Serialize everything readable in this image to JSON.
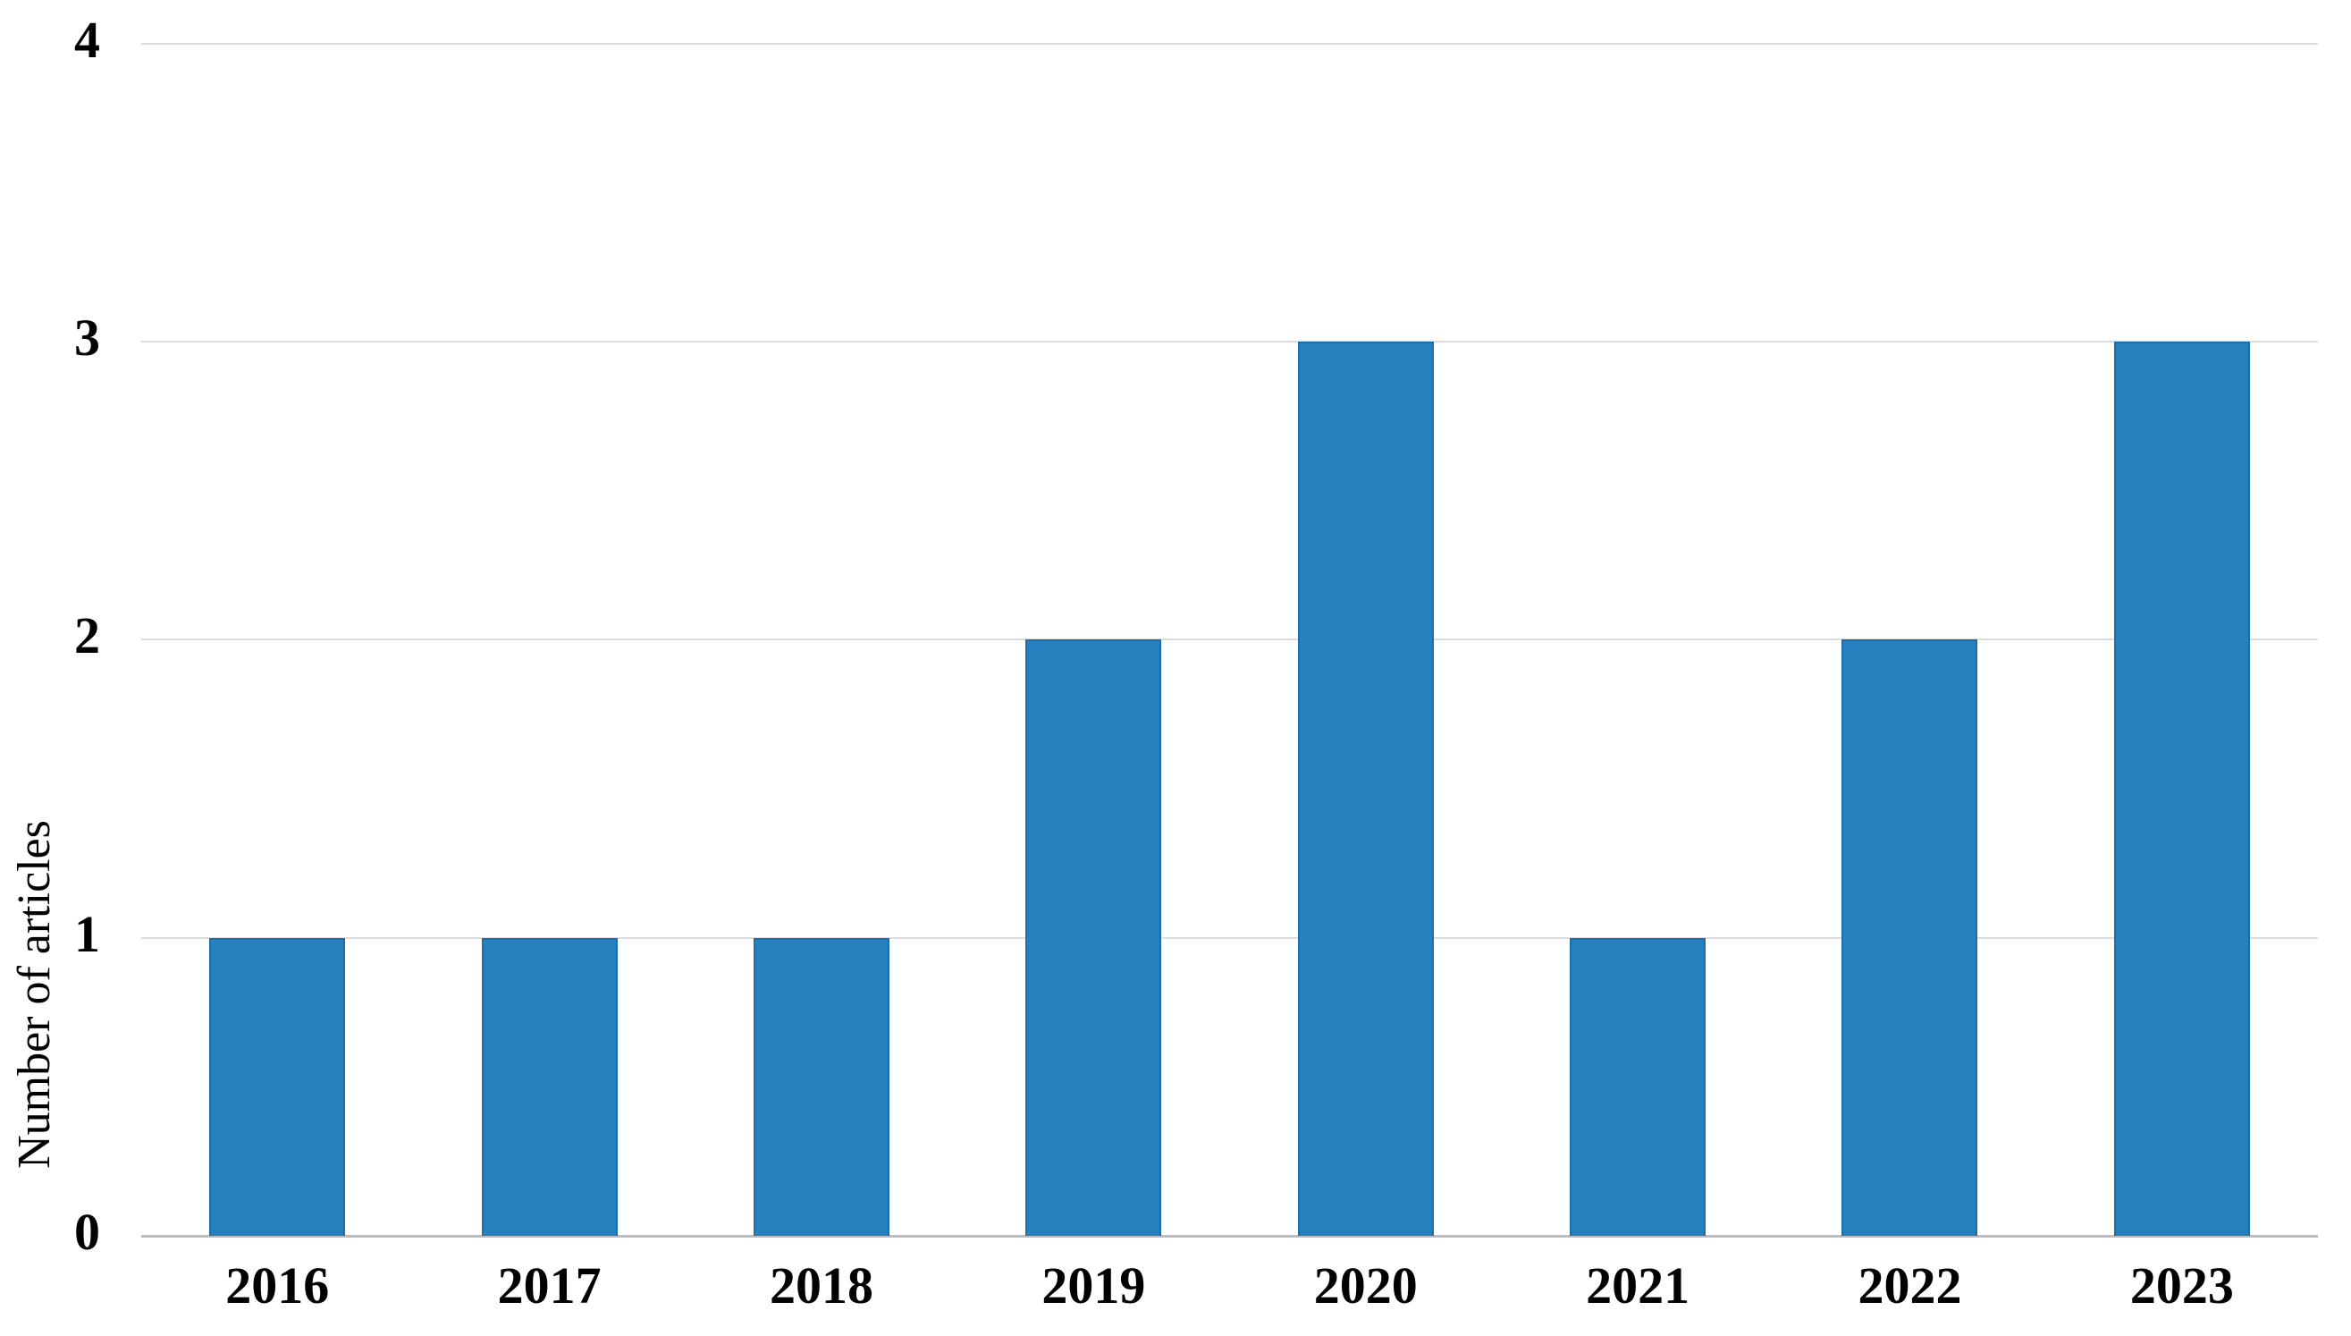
{
  "chart_data": {
    "type": "bar",
    "title": "",
    "categories": [
      "2016",
      "2017",
      "2018",
      "2019",
      "2020",
      "2021",
      "2022",
      "2023"
    ],
    "values": [
      1,
      1,
      1,
      2,
      3,
      1,
      2,
      3
    ],
    "xlabel": "",
    "ylabel": "Number of articles",
    "y_ticks": [
      0,
      1,
      2,
      3,
      4
    ],
    "ylim": [
      0,
      4
    ],
    "grid": "horizontal-gridlines-on",
    "legend": "none",
    "colors": {
      "bar_fill": "#2680be",
      "bar_edge": "#1e6fa8",
      "gridline": "#dcdcdc",
      "axis_line": "#bdbdbd",
      "text": "#000000",
      "background": "#ffffff"
    }
  }
}
